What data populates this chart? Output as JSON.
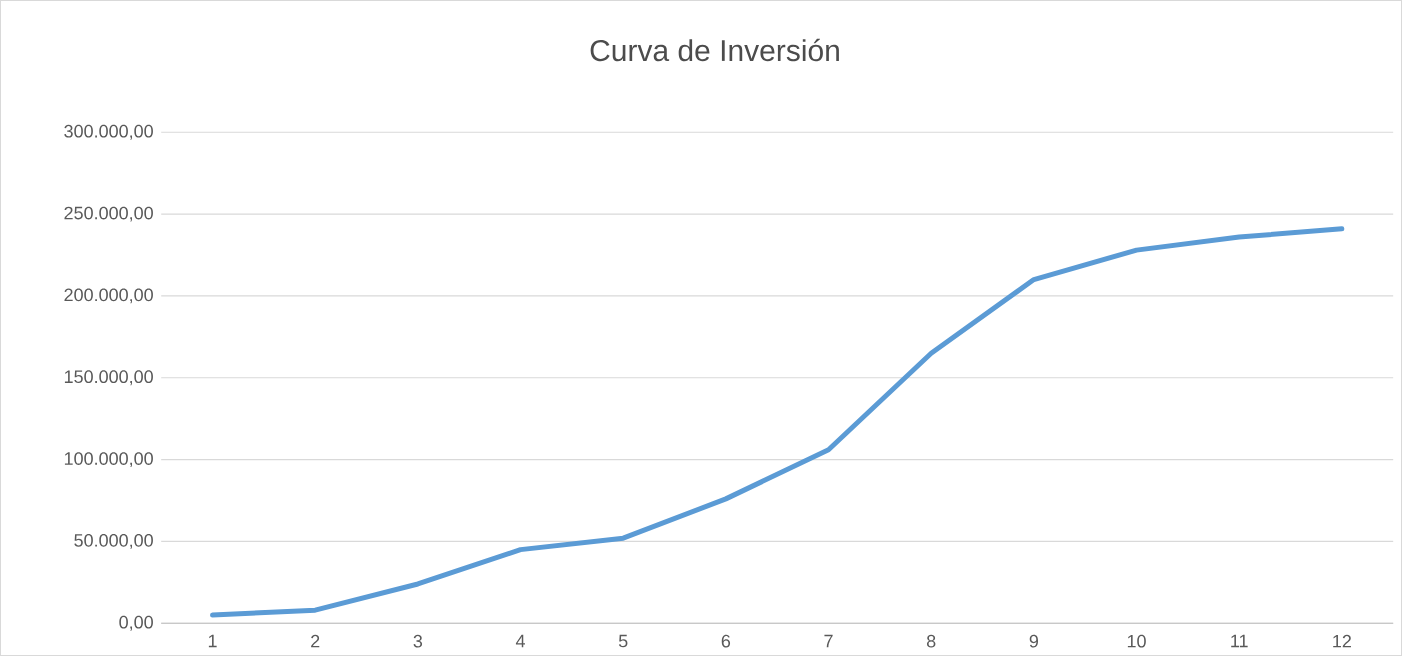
{
  "chart_data": {
    "type": "line",
    "title": "Curva de Inversión",
    "categories": [
      "1",
      "2",
      "3",
      "4",
      "5",
      "6",
      "7",
      "8",
      "9",
      "10",
      "11",
      "12"
    ],
    "values": [
      5000,
      8000,
      24000,
      45000,
      52000,
      76000,
      106000,
      165000,
      210000,
      228000,
      236000,
      241000
    ],
    "color": "#5b9bd5",
    "ylim": [
      0,
      300000
    ],
    "yticks": [
      {
        "value": 0,
        "label": "0,00"
      },
      {
        "value": 50000,
        "label": "50.000,00"
      },
      {
        "value": 100000,
        "label": "100.000,00"
      },
      {
        "value": 150000,
        "label": "150.000,00"
      },
      {
        "value": 200000,
        "label": "200.000,00"
      },
      {
        "value": 250000,
        "label": "250.000,00"
      },
      {
        "value": 300000,
        "label": "300.000,00"
      }
    ],
    "grid": "y",
    "marker": "none",
    "line_style": "solid"
  }
}
